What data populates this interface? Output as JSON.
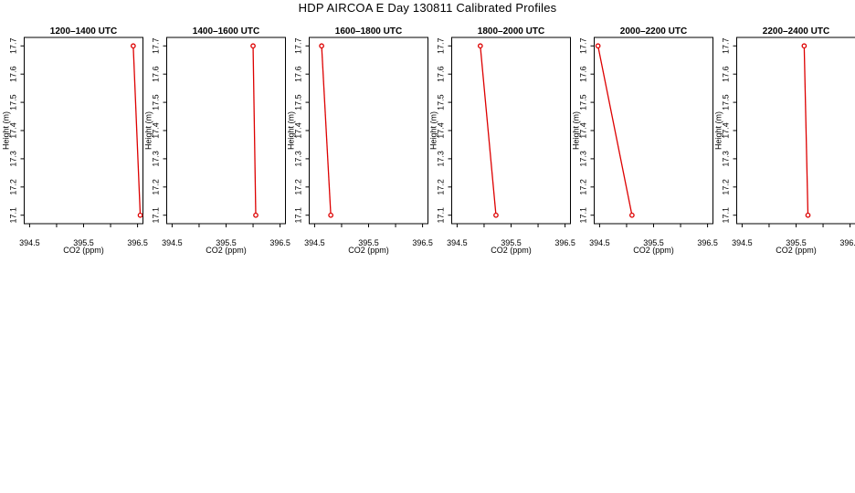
{
  "title": "HDP AIRCOA E  Day 130811  Calibrated Profiles",
  "chart_data": {
    "type": "line",
    "xlabel": "CO2 (ppm)",
    "ylabel": "Height (m)",
    "xlim": [
      394.4,
      396.6
    ],
    "ylim": [
      17.07,
      17.73
    ],
    "xticks": [
      "394.5",
      "395.5",
      "396.5"
    ],
    "xticks_values": [
      394.5,
      395.5,
      396.5
    ],
    "yticks": [
      "17.1",
      "17.2",
      "17.3",
      "17.4",
      "17.5",
      "17.6",
      "17.7"
    ],
    "yticks_values": [
      17.1,
      17.2,
      17.3,
      17.4,
      17.5,
      17.6,
      17.7
    ],
    "line_color": "#dd0000",
    "marker": "open-circle",
    "grid": false,
    "panels": [
      {
        "title": "1200–1400 UTC",
        "points": [
          {
            "x": 396.42,
            "y": 17.7
          },
          {
            "x": 396.55,
            "y": 17.1
          }
        ]
      },
      {
        "title": "1400–1600 UTC",
        "points": [
          {
            "x": 396.0,
            "y": 17.7
          },
          {
            "x": 396.05,
            "y": 17.1
          }
        ]
      },
      {
        "title": "1600–1800 UTC",
        "points": [
          {
            "x": 394.63,
            "y": 17.7
          },
          {
            "x": 394.8,
            "y": 17.1
          }
        ]
      },
      {
        "title": "1800–2000 UTC",
        "points": [
          {
            "x": 394.93,
            "y": 17.7
          },
          {
            "x": 395.22,
            "y": 17.1
          }
        ]
      },
      {
        "title": "2000–2200 UTC",
        "points": [
          {
            "x": 394.47,
            "y": 17.7
          },
          {
            "x": 395.1,
            "y": 17.1
          }
        ]
      },
      {
        "title": "2200–2400 UTC",
        "points": [
          {
            "x": 395.65,
            "y": 17.7
          },
          {
            "x": 395.72,
            "y": 17.1
          }
        ]
      }
    ]
  }
}
